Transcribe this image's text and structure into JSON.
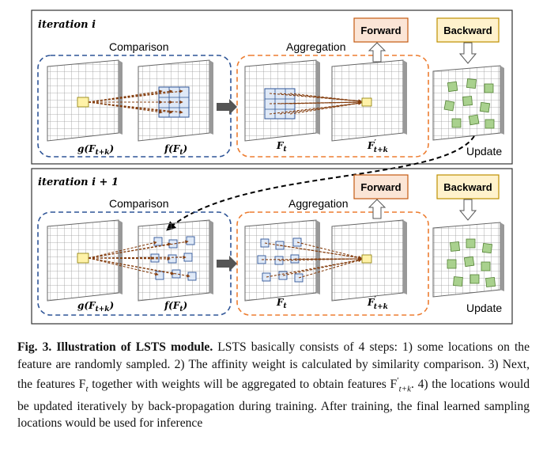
{
  "panels": [
    {
      "title": "iteration i",
      "comparison_label": "Comparison",
      "aggregation_label": "Aggregation",
      "forward_label": "Forward",
      "backward_label": "Backward",
      "update_label": "Update",
      "grid_labels": [
        "g(F",
        "f(F",
        "F",
        "F"
      ],
      "grid_subs": [
        "t+k",
        "t",
        "t",
        "t+k"
      ],
      "grid_close": [
        ")",
        ")",
        "",
        ""
      ],
      "prime_on_last": "′"
    },
    {
      "title": "iteration i + 1",
      "comparison_label": "Comparison",
      "aggregation_label": "Aggregation",
      "forward_label": "Forward",
      "backward_label": "Backward",
      "update_label": "Update",
      "grid_labels": [
        "g(F",
        "f(F",
        "F",
        "F"
      ],
      "grid_subs": [
        "t+k",
        "t",
        "t",
        "t+k"
      ],
      "grid_close": [
        ")",
        ")",
        "",
        ""
      ],
      "prime_on_last": "′"
    }
  ],
  "caption": {
    "lead": "Fig. 3.  Illustration of LSTS module.",
    "body": " LSTS basically consists of 4 steps: 1) some locations on the feature are randomly sampled. 2) The affinity weight is calculated by similarity comparison. 3) Next, the features F",
    "f_sub": "t",
    "body2": " together with weights will be aggregated to obtain features F",
    "f2_sup": "′",
    "f2_sub": "t+k",
    "body3": ". 4) the locations would be updated iteratively by back-propagation during training. After training, the final learned sampling locations would be used for inference"
  },
  "colors": {
    "blue_dash": "#2f5597",
    "orange_dash": "#ed7d31",
    "box_fill": "#fbe5d6",
    "box_stroke": "#c55a11",
    "backward_fill": "#fff2cc",
    "backward_stroke": "#bf9000",
    "green": "#a9d18e",
    "arrow_red": "#843c0c",
    "yellow": "#fff2a8"
  }
}
